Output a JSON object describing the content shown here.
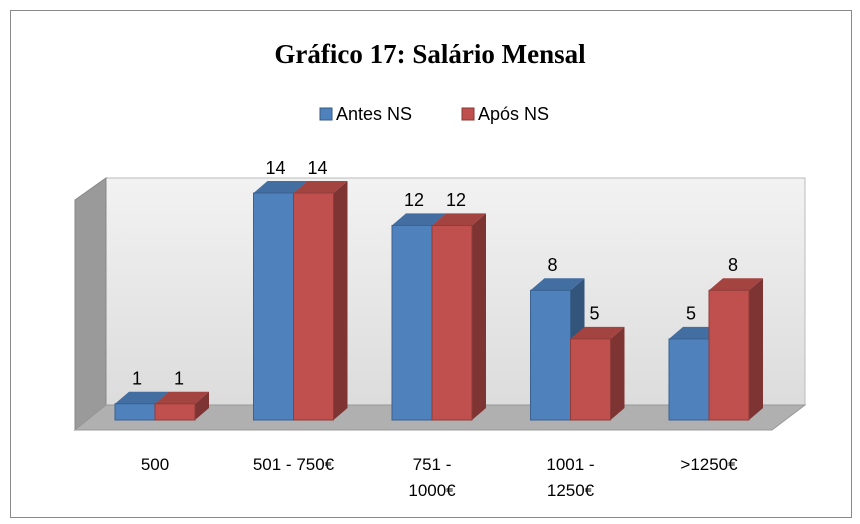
{
  "chart_data": {
    "type": "bar3d",
    "title": "Gráfico 17: Salário Mensal",
    "categories": [
      "500",
      "501 - 750€",
      "751 - 1000€",
      "1001 - 1250€",
      ">1250€"
    ],
    "series": [
      {
        "name": "Antes NS",
        "color": "#4f81bd",
        "values": [
          1,
          14,
          12,
          8,
          5
        ]
      },
      {
        "name": "Após NS",
        "color": "#c0504d",
        "values": [
          1,
          14,
          12,
          5,
          8
        ]
      }
    ],
    "legend": "top"
  }
}
